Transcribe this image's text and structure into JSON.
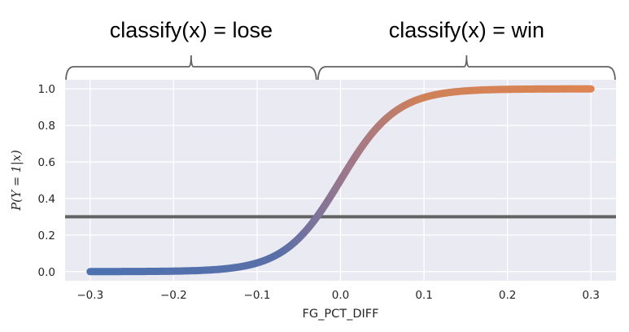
{
  "chart_data": {
    "type": "line",
    "title": "",
    "xlabel": "FG_PCT_DIFF",
    "ylabel": "P(Y = 1|x)",
    "xlim": [
      -0.33,
      0.33
    ],
    "ylim": [
      -0.05,
      1.05
    ],
    "grid": true,
    "x_ticks": [
      -0.3,
      -0.2,
      -0.1,
      0.0,
      0.1,
      0.2,
      0.3
    ],
    "y_ticks": [
      0.0,
      0.2,
      0.4,
      0.6,
      0.8,
      1.0
    ],
    "x_tick_labels": [
      "−0.3",
      "−0.2",
      "−0.1",
      "0.0",
      "0.1",
      "0.2",
      "0.3"
    ],
    "y_tick_labels": [
      "0.0",
      "0.2",
      "0.4",
      "0.6",
      "0.8",
      "1.0"
    ],
    "series": [
      {
        "kind": "sigmoid-curve",
        "x_range": [
          -0.3,
          0.3
        ],
        "center": 0.0,
        "steepness": 30,
        "color_start": "#4c72b0",
        "color_end": "#dd8452"
      },
      {
        "kind": "threshold-line",
        "y": 0.3,
        "color": "#636363"
      }
    ],
    "regions": [
      {
        "label": "classify(x) = lose",
        "x_range": [
          -0.33,
          -0.028
        ]
      },
      {
        "label": "classify(x) = win",
        "x_range": [
          -0.028,
          0.33
        ]
      }
    ],
    "colors": {
      "plot_background": "#eaeaf2",
      "grid": "#ffffff",
      "brace": "#636363"
    }
  }
}
